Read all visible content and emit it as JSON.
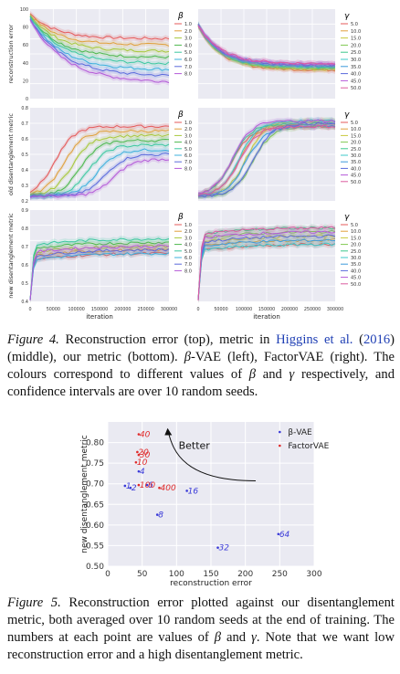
{
  "figure4": {
    "colors": {
      "beta": [
        "#e55a5a",
        "#e0a03c",
        "#a8c83c",
        "#4cb84c",
        "#3cc8a0",
        "#3cb0dc",
        "#5a6adc",
        "#b45ad8"
      ],
      "gamma": [
        "#e55a5a",
        "#e0a03c",
        "#c8c83c",
        "#80c850",
        "#3cc88c",
        "#3cc8c8",
        "#3c9adc",
        "#5a6adc",
        "#b45ad8",
        "#dc5aa0"
      ]
    },
    "beta_symbol": "β",
    "gamma_symbol": "γ",
    "beta_legend": [
      "1.0",
      "2.0",
      "3.0",
      "4.0",
      "5.0",
      "6.0",
      "7.0",
      "8.0"
    ],
    "gamma_legend": [
      "5.0",
      "10.0",
      "15.0",
      "20.0",
      "25.0",
      "30.0",
      "35.0",
      "40.0",
      "45.0",
      "50.0"
    ],
    "row_ylabels": [
      "reconstruction error",
      "old disentanglement metric",
      "new disentanglement metric"
    ],
    "row1_yticks": [
      "0",
      "20",
      "40",
      "60",
      "80",
      "100"
    ],
    "row2_yticks": [
      "0.2",
      "0.3",
      "0.4",
      "0.5",
      "0.6",
      "0.7",
      "0.8"
    ],
    "row3_yticks": [
      "0.4",
      "0.5",
      "0.6",
      "0.7",
      "0.8",
      "0.9"
    ],
    "xticks": [
      "0",
      "50000",
      "100000",
      "150000",
      "200000",
      "250000",
      "300000"
    ],
    "xlabel": "iteration"
  },
  "caption4": {
    "label": "Figure 4.",
    "text_a": " Reconstruction error (top), metric in ",
    "cite": "Higgins et al.",
    "text_b": " (",
    "cite_year": "2016",
    "text_c": ") (middle), our metric (bottom). ",
    "beta": "β",
    "text_d": "-VAE (left), FactorVAE (right). The colours correspond to different values of ",
    "beta2": "β",
    "text_e": " and ",
    "gamma": "γ",
    "text_f": " respectively, and confidence intervals are over 10 random seeds."
  },
  "figure5": {
    "colors": {
      "beta_vae": "#3a3ad8",
      "factor_vae": "#e02a2a"
    },
    "legend": [
      "β-VAE",
      "FactorVAE"
    ],
    "annotation": "Better",
    "chart_data": {
      "type": "scatter",
      "xlabel": "reconstruction error",
      "ylabel": "new disentanglement metric",
      "xlim": [
        0,
        300
      ],
      "ylim": [
        0.5,
        0.85
      ],
      "xticks": [
        0,
        50,
        100,
        150,
        200,
        250,
        300
      ],
      "yticks": [
        0.5,
        0.55,
        0.6,
        0.65,
        0.7,
        0.75,
        0.8
      ],
      "series": [
        {
          "name": "β-VAE",
          "points": [
            {
              "label": "1",
              "x": 25,
              "y": 0.695
            },
            {
              "label": "2",
              "x": 33,
              "y": 0.69
            },
            {
              "label": "4",
              "x": 45,
              "y": 0.73
            },
            {
              "label": "6",
              "x": 57,
              "y": 0.697
            },
            {
              "label": "8",
              "x": 72,
              "y": 0.625
            },
            {
              "label": "16",
              "x": 115,
              "y": 0.683
            },
            {
              "label": "32",
              "x": 160,
              "y": 0.545
            },
            {
              "label": "64",
              "x": 248,
              "y": 0.578
            }
          ]
        },
        {
          "name": "FactorVAE",
          "points": [
            {
              "label": "40",
              "x": 45,
              "y": 0.82
            },
            {
              "label": "20",
              "x": 43,
              "y": 0.777
            },
            {
              "label": "30",
              "x": 45,
              "y": 0.77
            },
            {
              "label": "10",
              "x": 41,
              "y": 0.752
            },
            {
              "label": "100",
              "x": 45,
              "y": 0.697
            },
            {
              "label": "400",
              "x": 75,
              "y": 0.69
            }
          ]
        }
      ]
    }
  },
  "caption5": {
    "label": "Figure 5.",
    "text_a": " Reconstruction error plotted against our disentanglement metric, both averaged over 10 random seeds at the end of training. The numbers at each point are values of ",
    "beta": "β",
    "text_b": " and ",
    "gamma": "γ",
    "text_c": ". Note that we want low reconstruction error and a high disentanglement metric."
  }
}
